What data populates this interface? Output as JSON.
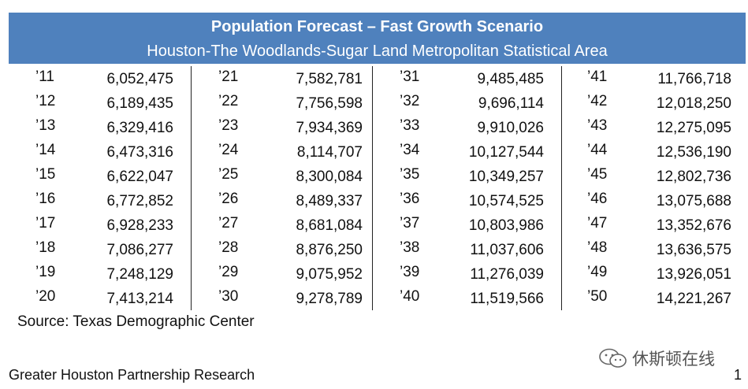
{
  "header": {
    "title": "Population Forecast – Fast Growth Scenario",
    "subtitle": "Houston-The Woodlands-Sugar Land Metropolitan Statistical Area"
  },
  "columns": [
    [
      {
        "year": "’11",
        "value": "6,052,475"
      },
      {
        "year": "’12",
        "value": "6,189,435"
      },
      {
        "year": "’13",
        "value": "6,329,416"
      },
      {
        "year": "’14",
        "value": "6,473,316"
      },
      {
        "year": "’15",
        "value": "6,622,047"
      },
      {
        "year": "’16",
        "value": "6,772,852"
      },
      {
        "year": "’17",
        "value": "6,928,233"
      },
      {
        "year": "’18",
        "value": "7,086,277"
      },
      {
        "year": "’19",
        "value": "7,248,129"
      },
      {
        "year": "’20",
        "value": "7,413,214"
      }
    ],
    [
      {
        "year": "’21",
        "value": "7,582,781"
      },
      {
        "year": "’22",
        "value": "7,756,598"
      },
      {
        "year": "’23",
        "value": "7,934,369"
      },
      {
        "year": "’24",
        "value": "8,114,707"
      },
      {
        "year": "’25",
        "value": "8,300,084"
      },
      {
        "year": "’26",
        "value": "8,489,337"
      },
      {
        "year": "’27",
        "value": "8,681,084"
      },
      {
        "year": "’28",
        "value": "8,876,250"
      },
      {
        "year": "’29",
        "value": "9,075,952"
      },
      {
        "year": "’30",
        "value": "9,278,789"
      }
    ],
    [
      {
        "year": "’31",
        "value": "9,485,485"
      },
      {
        "year": "’32",
        "value": "9,696,114"
      },
      {
        "year": "’33",
        "value": "9,910,026"
      },
      {
        "year": "’34",
        "value": "10,127,544"
      },
      {
        "year": "’35",
        "value": "10,349,257"
      },
      {
        "year": "’36",
        "value": "10,574,525"
      },
      {
        "year": "’37",
        "value": "10,803,986"
      },
      {
        "year": "’38",
        "value": "11,037,606"
      },
      {
        "year": "’39",
        "value": "11,276,039"
      },
      {
        "year": "’40",
        "value": "11,519,566"
      }
    ],
    [
      {
        "year": "’41",
        "value": "11,766,718"
      },
      {
        "year": "’42",
        "value": "12,018,250"
      },
      {
        "year": "’43",
        "value": "12,275,095"
      },
      {
        "year": "’44",
        "value": "12,536,190"
      },
      {
        "year": "’45",
        "value": "12,802,736"
      },
      {
        "year": "’46",
        "value": "13,075,688"
      },
      {
        "year": "’47",
        "value": "13,352,676"
      },
      {
        "year": "’48",
        "value": "13,636,575"
      },
      {
        "year": "’49",
        "value": "13,926,051"
      },
      {
        "year": "’50",
        "value": "14,221,267"
      }
    ]
  ],
  "source": "Source: Texas Demographic Center",
  "footer": {
    "org": "Greater Houston Partnership Research",
    "page_number": "1"
  },
  "watermark": {
    "text": "休斯顿在线",
    "icon": "wechat-icon"
  },
  "colors": {
    "header_bg": "#4f81bd",
    "header_text": "#ffffff"
  }
}
